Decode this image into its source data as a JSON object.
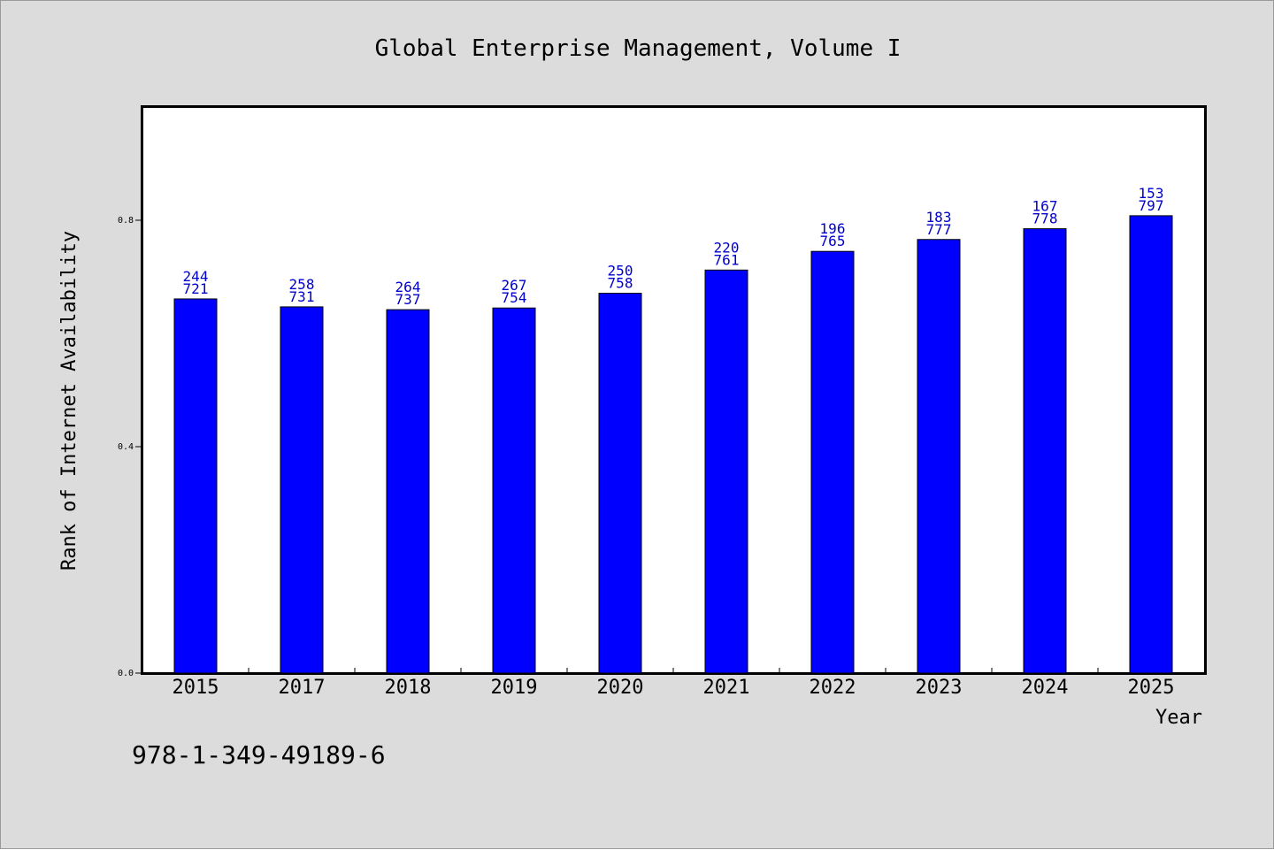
{
  "colors": {
    "background": "#dcdcdc",
    "plot_background": "#ffffff",
    "bar": "#0000ff",
    "data_label": "#0000cc"
  },
  "isbn": "978-1-349-49189-6",
  "chart_data": {
    "type": "bar",
    "title": "Global Enterprise Management, Volume I",
    "xlabel": "Year",
    "ylabel": "Rank of Internet Availability",
    "categories": [
      "2015",
      "2017",
      "2018",
      "2019",
      "2020",
      "2021",
      "2022",
      "2023",
      "2024",
      "2025"
    ],
    "values": [
      0.661,
      0.647,
      0.642,
      0.645,
      0.671,
      0.712,
      0.745,
      0.766,
      0.785,
      0.808
    ],
    "label_top": [
      "244",
      "258",
      "264",
      "267",
      "250",
      "220",
      "196",
      "183",
      "167",
      "153"
    ],
    "label_bottom": [
      "721",
      "731",
      "737",
      "754",
      "758",
      "761",
      "765",
      "777",
      "778",
      "797"
    ],
    "yticks": [
      0.0,
      0.4,
      0.8
    ],
    "ytick_labels": [
      "0.0",
      "0.4",
      "0.8"
    ],
    "ylim": [
      0,
      1.0
    ],
    "grid": false,
    "legend": "none"
  }
}
